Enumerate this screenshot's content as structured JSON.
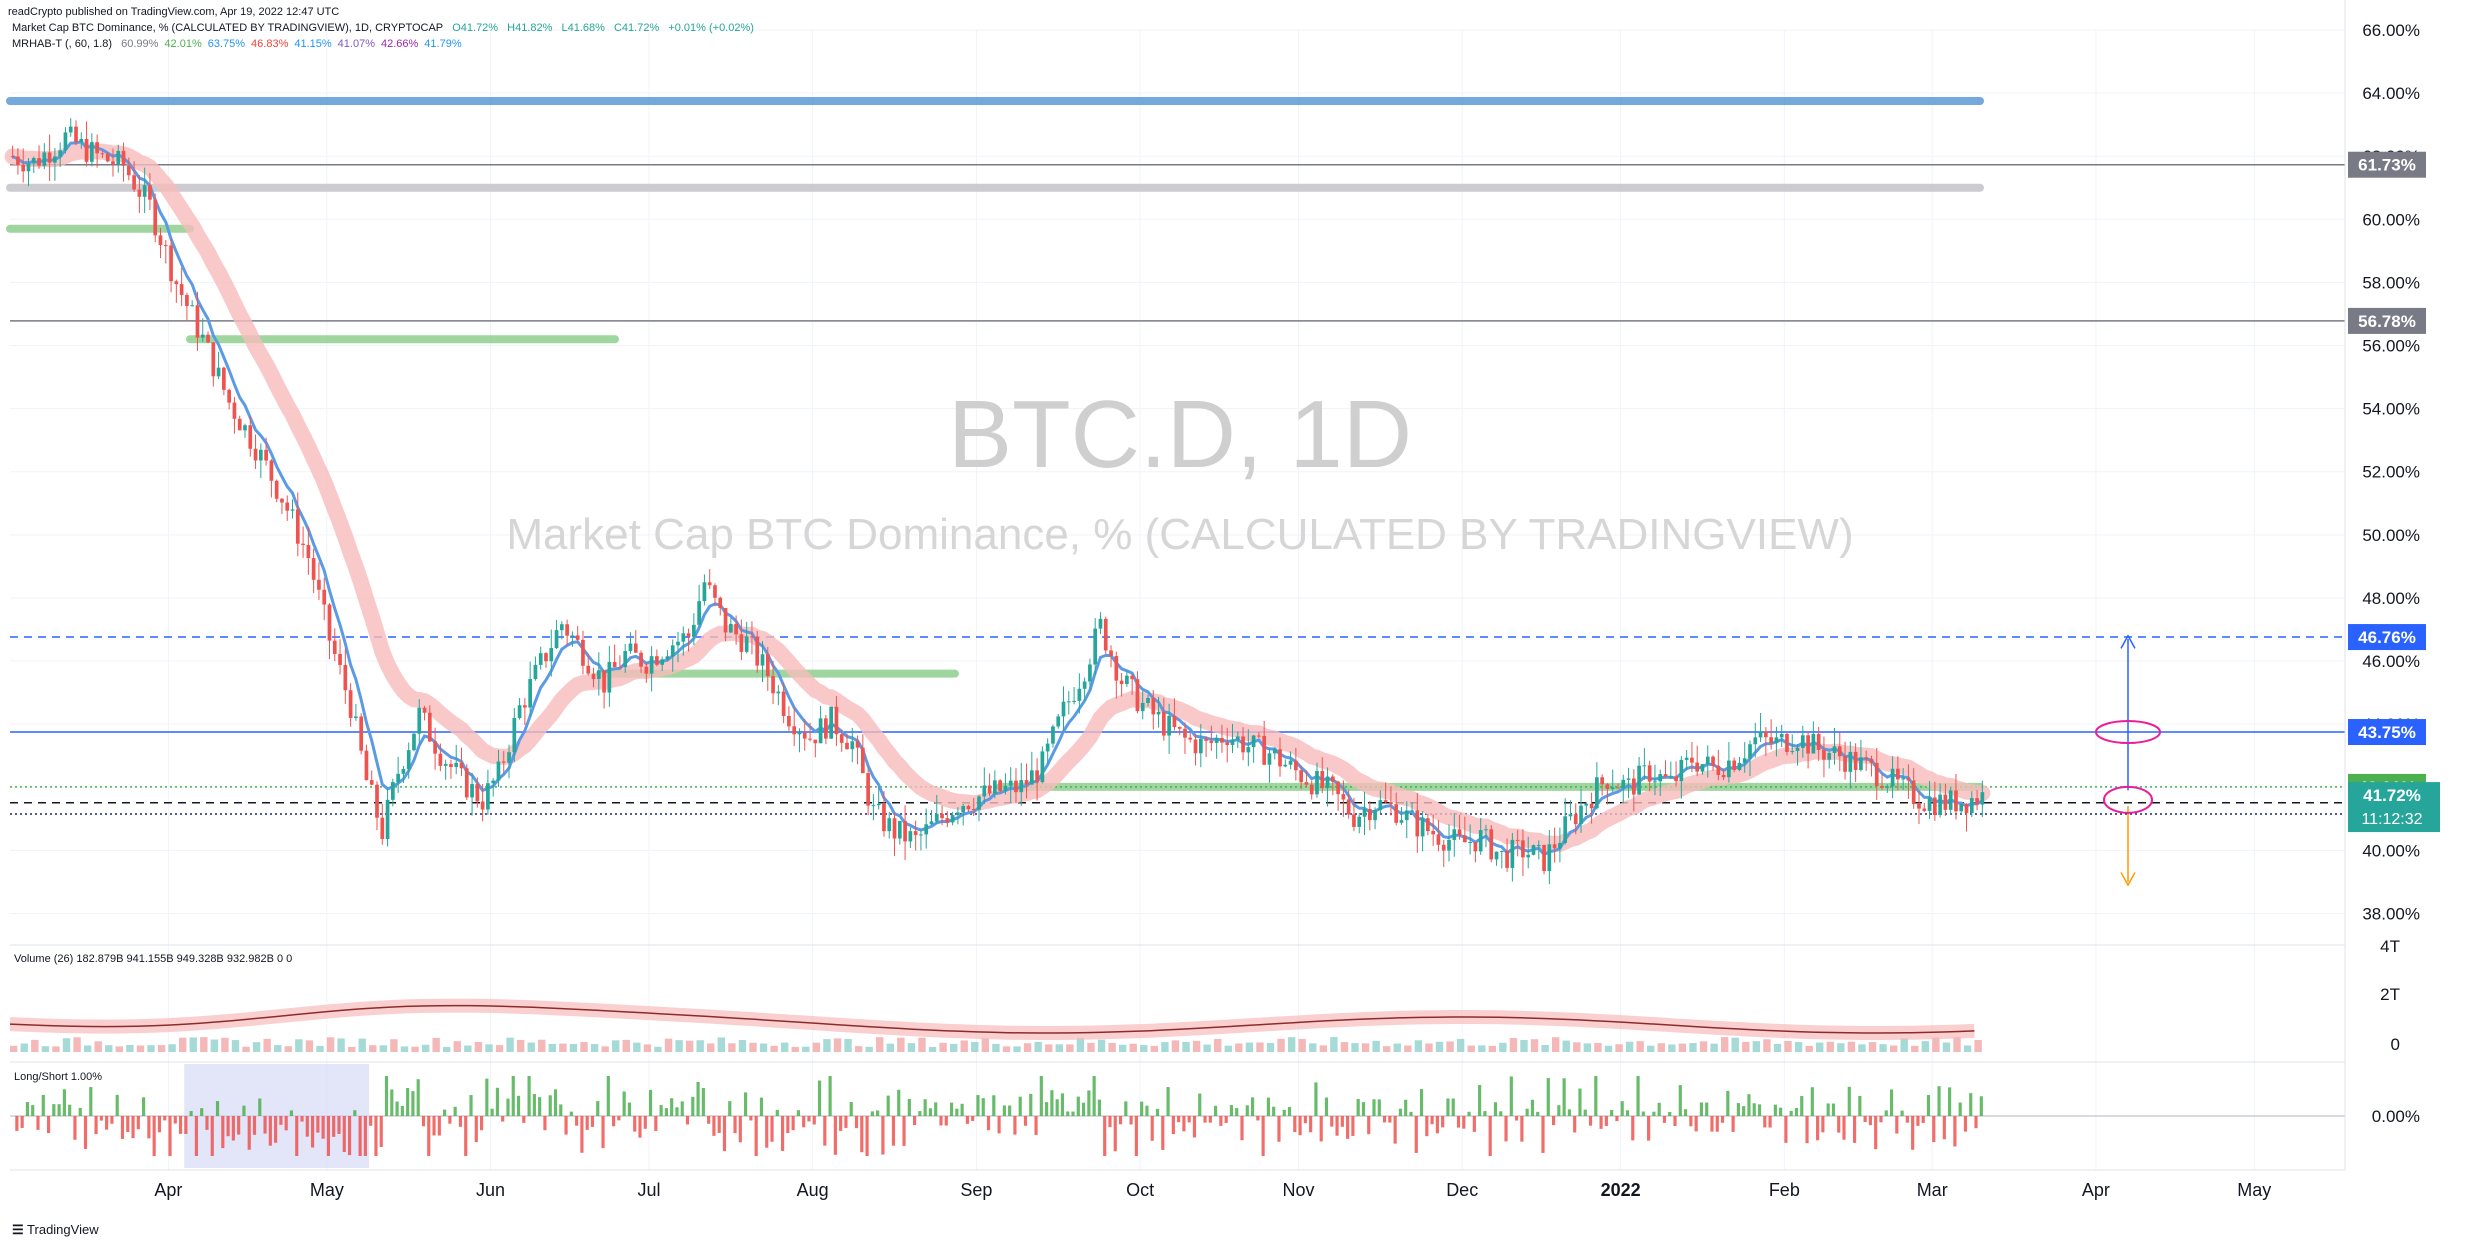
{
  "publisher": "readCrypto published on TradingView.com, Apr 19, 2022 12:47 UTC",
  "header": {
    "symbol_line": "Market Cap BTC Dominance, % (CALCULATED BY TRADINGVIEW), 1D, CRYPTOCAP",
    "open": "O41.72%",
    "high": "H41.82%",
    "low": "L41.68%",
    "close": "C41.72%",
    "change": "+0.01% (+0.02%)",
    "indicator_name": "MRHAB-T (, 60, 1.8)",
    "indicator_values": [
      "60.99%",
      "42.01%",
      "63.75%",
      "46.83%",
      "41.15%",
      "41.07%",
      "42.66%",
      "41.79%"
    ],
    "indicator_colors": [
      "#787b86",
      "#4caf50",
      "#2196f3",
      "#f44336",
      "#2196f3",
      "#7e57c2",
      "#9c27b0",
      "#2196f3"
    ]
  },
  "watermark": {
    "line1": "BTC.D, 1D",
    "line2": "Market Cap BTC Dominance, % (CALCULATED BY TRADINGVIEW)"
  },
  "footer": {
    "logo_text": "TradingView"
  },
  "chart_data": {
    "type": "candlestick",
    "y_axis_ticks": [
      "66.00%",
      "64.00%",
      "62.00%",
      "60.00%",
      "58.00%",
      "56.00%",
      "54.00%",
      "52.00%",
      "50.00%",
      "48.00%",
      "46.00%",
      "44.00%",
      "42.00%",
      "40.00%",
      "38.00%"
    ],
    "ylim": [
      37.0,
      66.0
    ],
    "x_axis_labels": [
      "Apr",
      "May",
      "Jun",
      "Jul",
      "Aug",
      "Sep",
      "Oct",
      "Nov",
      "Dec",
      "2022",
      "Feb",
      "Mar",
      "Apr",
      "May",
      "Jun",
      "Jul"
    ],
    "price_path": [
      [
        0,
        62.0
      ],
      [
        4,
        61.8
      ],
      [
        10,
        62.6
      ],
      [
        16,
        62.0
      ],
      [
        21,
        61.7
      ],
      [
        26,
        60.4
      ],
      [
        31,
        58.0
      ],
      [
        36,
        56.2
      ],
      [
        41,
        54.2
      ],
      [
        46,
        52.8
      ],
      [
        51,
        51.2
      ],
      [
        56,
        49.3
      ],
      [
        60,
        46.7
      ],
      [
        64,
        44.6
      ],
      [
        67,
        42.2
      ],
      [
        70,
        40.6
      ],
      [
        73,
        42.5
      ],
      [
        77,
        44.3
      ],
      [
        81,
        43.1
      ],
      [
        85,
        42.2
      ],
      [
        89,
        41.6
      ],
      [
        92,
        42.4
      ],
      [
        96,
        44.5
      ],
      [
        100,
        45.9
      ],
      [
        104,
        47.2
      ],
      [
        108,
        46.3
      ],
      [
        112,
        45.3
      ],
      [
        116,
        46.2
      ],
      [
        120,
        46.0
      ],
      [
        124,
        46.5
      ],
      [
        128,
        46.8
      ],
      [
        131,
        48.5
      ],
      [
        135,
        47.1
      ],
      [
        139,
        46.6
      ],
      [
        143,
        45.6
      ],
      [
        147,
        44.3
      ],
      [
        151,
        43.6
      ],
      [
        155,
        44.1
      ],
      [
        159,
        43.4
      ],
      [
        163,
        41.2
      ],
      [
        167,
        40.6
      ],
      [
        171,
        40.3
      ],
      [
        175,
        40.9
      ],
      [
        179,
        41.5
      ],
      [
        183,
        41.7
      ],
      [
        187,
        41.9
      ],
      [
        191,
        42.0
      ],
      [
        195,
        42.7
      ],
      [
        199,
        44.4
      ],
      [
        203,
        45.8
      ],
      [
        206,
        47.1
      ],
      [
        210,
        45.4
      ],
      [
        214,
        44.6
      ],
      [
        218,
        44.0
      ],
      [
        222,
        43.5
      ],
      [
        226,
        43.3
      ],
      [
        230,
        43.7
      ],
      [
        234,
        43.3
      ],
      [
        238,
        43.1
      ],
      [
        242,
        42.6
      ],
      [
        246,
        42.2
      ],
      [
        250,
        41.8
      ],
      [
        254,
        41.1
      ],
      [
        258,
        41.5
      ],
      [
        262,
        41.3
      ],
      [
        266,
        40.8
      ],
      [
        270,
        40.5
      ],
      [
        274,
        40.2
      ],
      [
        278,
        40.4
      ],
      [
        282,
        39.8
      ],
      [
        286,
        40.0
      ],
      [
        290,
        39.7
      ],
      [
        294,
        40.7
      ],
      [
        298,
        41.6
      ],
      [
        302,
        42.3
      ],
      [
        306,
        42.0
      ],
      [
        310,
        42.5
      ],
      [
        314,
        42.1
      ],
      [
        318,
        42.9
      ],
      [
        322,
        42.6
      ],
      [
        326,
        42.9
      ],
      [
        330,
        43.5
      ],
      [
        334,
        43.4
      ],
      [
        338,
        43.6
      ],
      [
        342,
        43.2
      ],
      [
        346,
        43.0
      ],
      [
        350,
        42.7
      ],
      [
        354,
        42.4
      ],
      [
        358,
        41.9
      ],
      [
        362,
        41.6
      ],
      [
        366,
        41.5
      ],
      [
        370,
        41.6
      ],
      [
        373,
        41.72
      ]
    ],
    "horizontal_levels": [
      {
        "label": "61.73%",
        "value": 61.73,
        "color": "#787b86",
        "kind": "solid-line"
      },
      {
        "label": "56.78%",
        "value": 56.78,
        "color": "#787b86",
        "kind": "solid-line"
      },
      {
        "label": "46.76%",
        "value": 46.76,
        "color": "#2962ff",
        "kind": "dashed-line"
      },
      {
        "label": "43.75%",
        "value": 43.75,
        "color": "#2962ff",
        "kind": "solid-line"
      },
      {
        "label": "42.01%",
        "value": 42.01,
        "color": "#4caf50",
        "kind": "dotted-line"
      },
      {
        "label": "41.51%",
        "value": 41.51,
        "color": "#131722",
        "kind": "dashed-line"
      },
      {
        "label": "41.15%",
        "value": 41.15,
        "color": "#1a237e",
        "kind": "dotted-line"
      }
    ],
    "last_price": {
      "label": "41.72%",
      "value": 41.72,
      "countdown": "11:12:32",
      "color": "#26a69a"
    },
    "volume_pane": {
      "label": "Volume (26)",
      "values_text": [
        "182.879B",
        "941.155B",
        "949.328B",
        "932.982B",
        "0",
        "0"
      ],
      "y_axis_ticks": [
        "4T",
        "2T",
        "0"
      ]
    },
    "long_short_pane": {
      "label": "Long/Short",
      "value": "1.00%",
      "y_axis_ticks": [
        "0.00%"
      ]
    }
  }
}
